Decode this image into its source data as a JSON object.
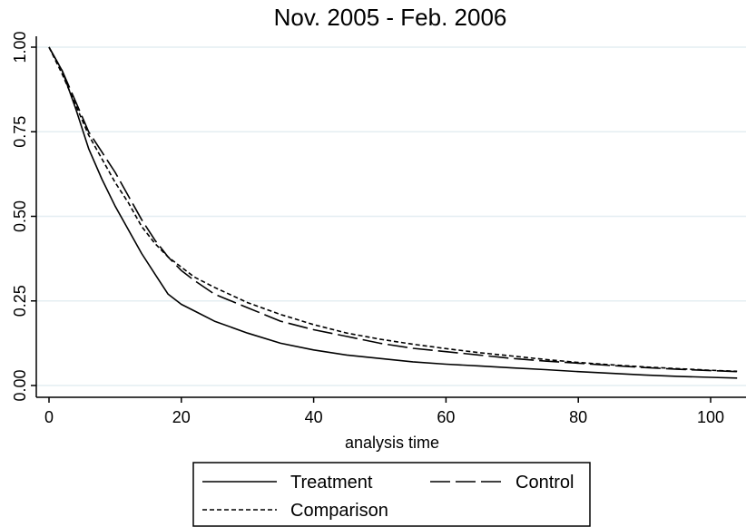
{
  "chart_data": {
    "type": "line",
    "title": "Nov. 2005 - Feb. 2006",
    "xlabel": "analysis time",
    "ylabel": "",
    "xlim": [
      0,
      104
    ],
    "ylim": [
      0,
      1
    ],
    "xticks": [
      0,
      20,
      40,
      60,
      80,
      100
    ],
    "xtick_labels": [
      "0",
      "20",
      "40",
      "60",
      "80",
      "100"
    ],
    "yticks": [
      0,
      0.25,
      0.5,
      0.75,
      1.0
    ],
    "ytick_labels": [
      "0.00",
      "0.25",
      "0.50",
      "0.75",
      "1.00"
    ],
    "grid": "horizontal",
    "legend_position": "bottom",
    "series": [
      {
        "name": "Treatment",
        "style": "solid",
        "color": "#000000",
        "x": [
          0,
          2,
          4,
          6,
          8,
          10,
          12,
          14,
          16,
          18,
          20,
          22,
          25,
          30,
          35,
          40,
          45,
          50,
          55,
          60,
          65,
          70,
          75,
          80,
          85,
          90,
          95,
          100,
          104
        ],
        "y": [
          1.0,
          0.93,
          0.82,
          0.7,
          0.61,
          0.53,
          0.46,
          0.39,
          0.33,
          0.27,
          0.24,
          0.22,
          0.19,
          0.155,
          0.125,
          0.105,
          0.09,
          0.08,
          0.07,
          0.063,
          0.058,
          0.052,
          0.047,
          0.041,
          0.036,
          0.031,
          0.027,
          0.024,
          0.022
        ]
      },
      {
        "name": "Control",
        "style": "long-dash",
        "color": "#000000",
        "x": [
          0,
          2,
          4,
          6,
          8,
          10,
          12,
          14,
          16,
          18,
          20,
          22,
          25,
          30,
          35,
          40,
          45,
          50,
          55,
          60,
          65,
          70,
          75,
          80,
          85,
          90,
          95,
          100,
          104
        ],
        "y": [
          1.0,
          0.93,
          0.84,
          0.75,
          0.69,
          0.63,
          0.56,
          0.49,
          0.43,
          0.38,
          0.34,
          0.31,
          0.27,
          0.23,
          0.19,
          0.165,
          0.145,
          0.125,
          0.11,
          0.1,
          0.09,
          0.08,
          0.072,
          0.066,
          0.059,
          0.053,
          0.048,
          0.044,
          0.041
        ]
      },
      {
        "name": "Comparison",
        "style": "short-dash",
        "color": "#000000",
        "x": [
          0,
          2,
          4,
          6,
          8,
          10,
          12,
          14,
          16,
          18,
          20,
          22,
          25,
          30,
          35,
          40,
          45,
          50,
          55,
          60,
          65,
          70,
          75,
          80,
          85,
          90,
          95,
          100,
          104
        ],
        "y": [
          1.0,
          0.92,
          0.83,
          0.74,
          0.67,
          0.6,
          0.54,
          0.47,
          0.42,
          0.38,
          0.35,
          0.32,
          0.29,
          0.245,
          0.21,
          0.18,
          0.155,
          0.137,
          0.122,
          0.109,
          0.097,
          0.087,
          0.077,
          0.068,
          0.061,
          0.055,
          0.05,
          0.045,
          0.042
        ]
      }
    ]
  }
}
